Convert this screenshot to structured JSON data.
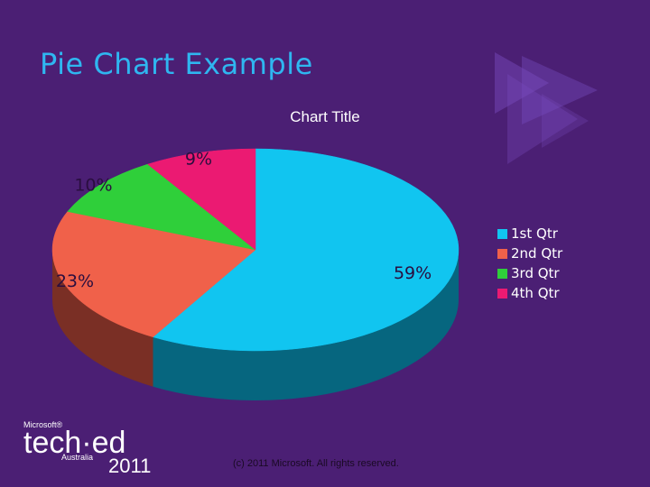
{
  "slide": {
    "title": "Pie Chart Example",
    "copyright": "(c) 2011 Microsoft. All rights reserved.",
    "brand": {
      "microsoft": "Microsoft®",
      "wordmark": "tech·ed",
      "region": "Australia",
      "year": "2011"
    }
  },
  "colors": {
    "background": "#4b1f74",
    "title": "#2fb6f0",
    "decor": "#7a4cc0"
  },
  "chart_data": {
    "type": "pie",
    "title": "Chart Title",
    "style": "3d",
    "legend_position": "right",
    "categories": [
      "1st Qtr",
      "2nd Qtr",
      "3rd Qtr",
      "4th Qtr"
    ],
    "values": [
      59,
      23,
      10,
      9
    ],
    "labels": [
      "59%",
      "23%",
      "10%",
      "9%"
    ],
    "colors": [
      "#11c5f0",
      "#f0614a",
      "#2fcf3a",
      "#eb1a72"
    ],
    "side_colors": [
      "#06667f",
      "#7a2f25",
      "#187a1e",
      "#851042"
    ]
  }
}
